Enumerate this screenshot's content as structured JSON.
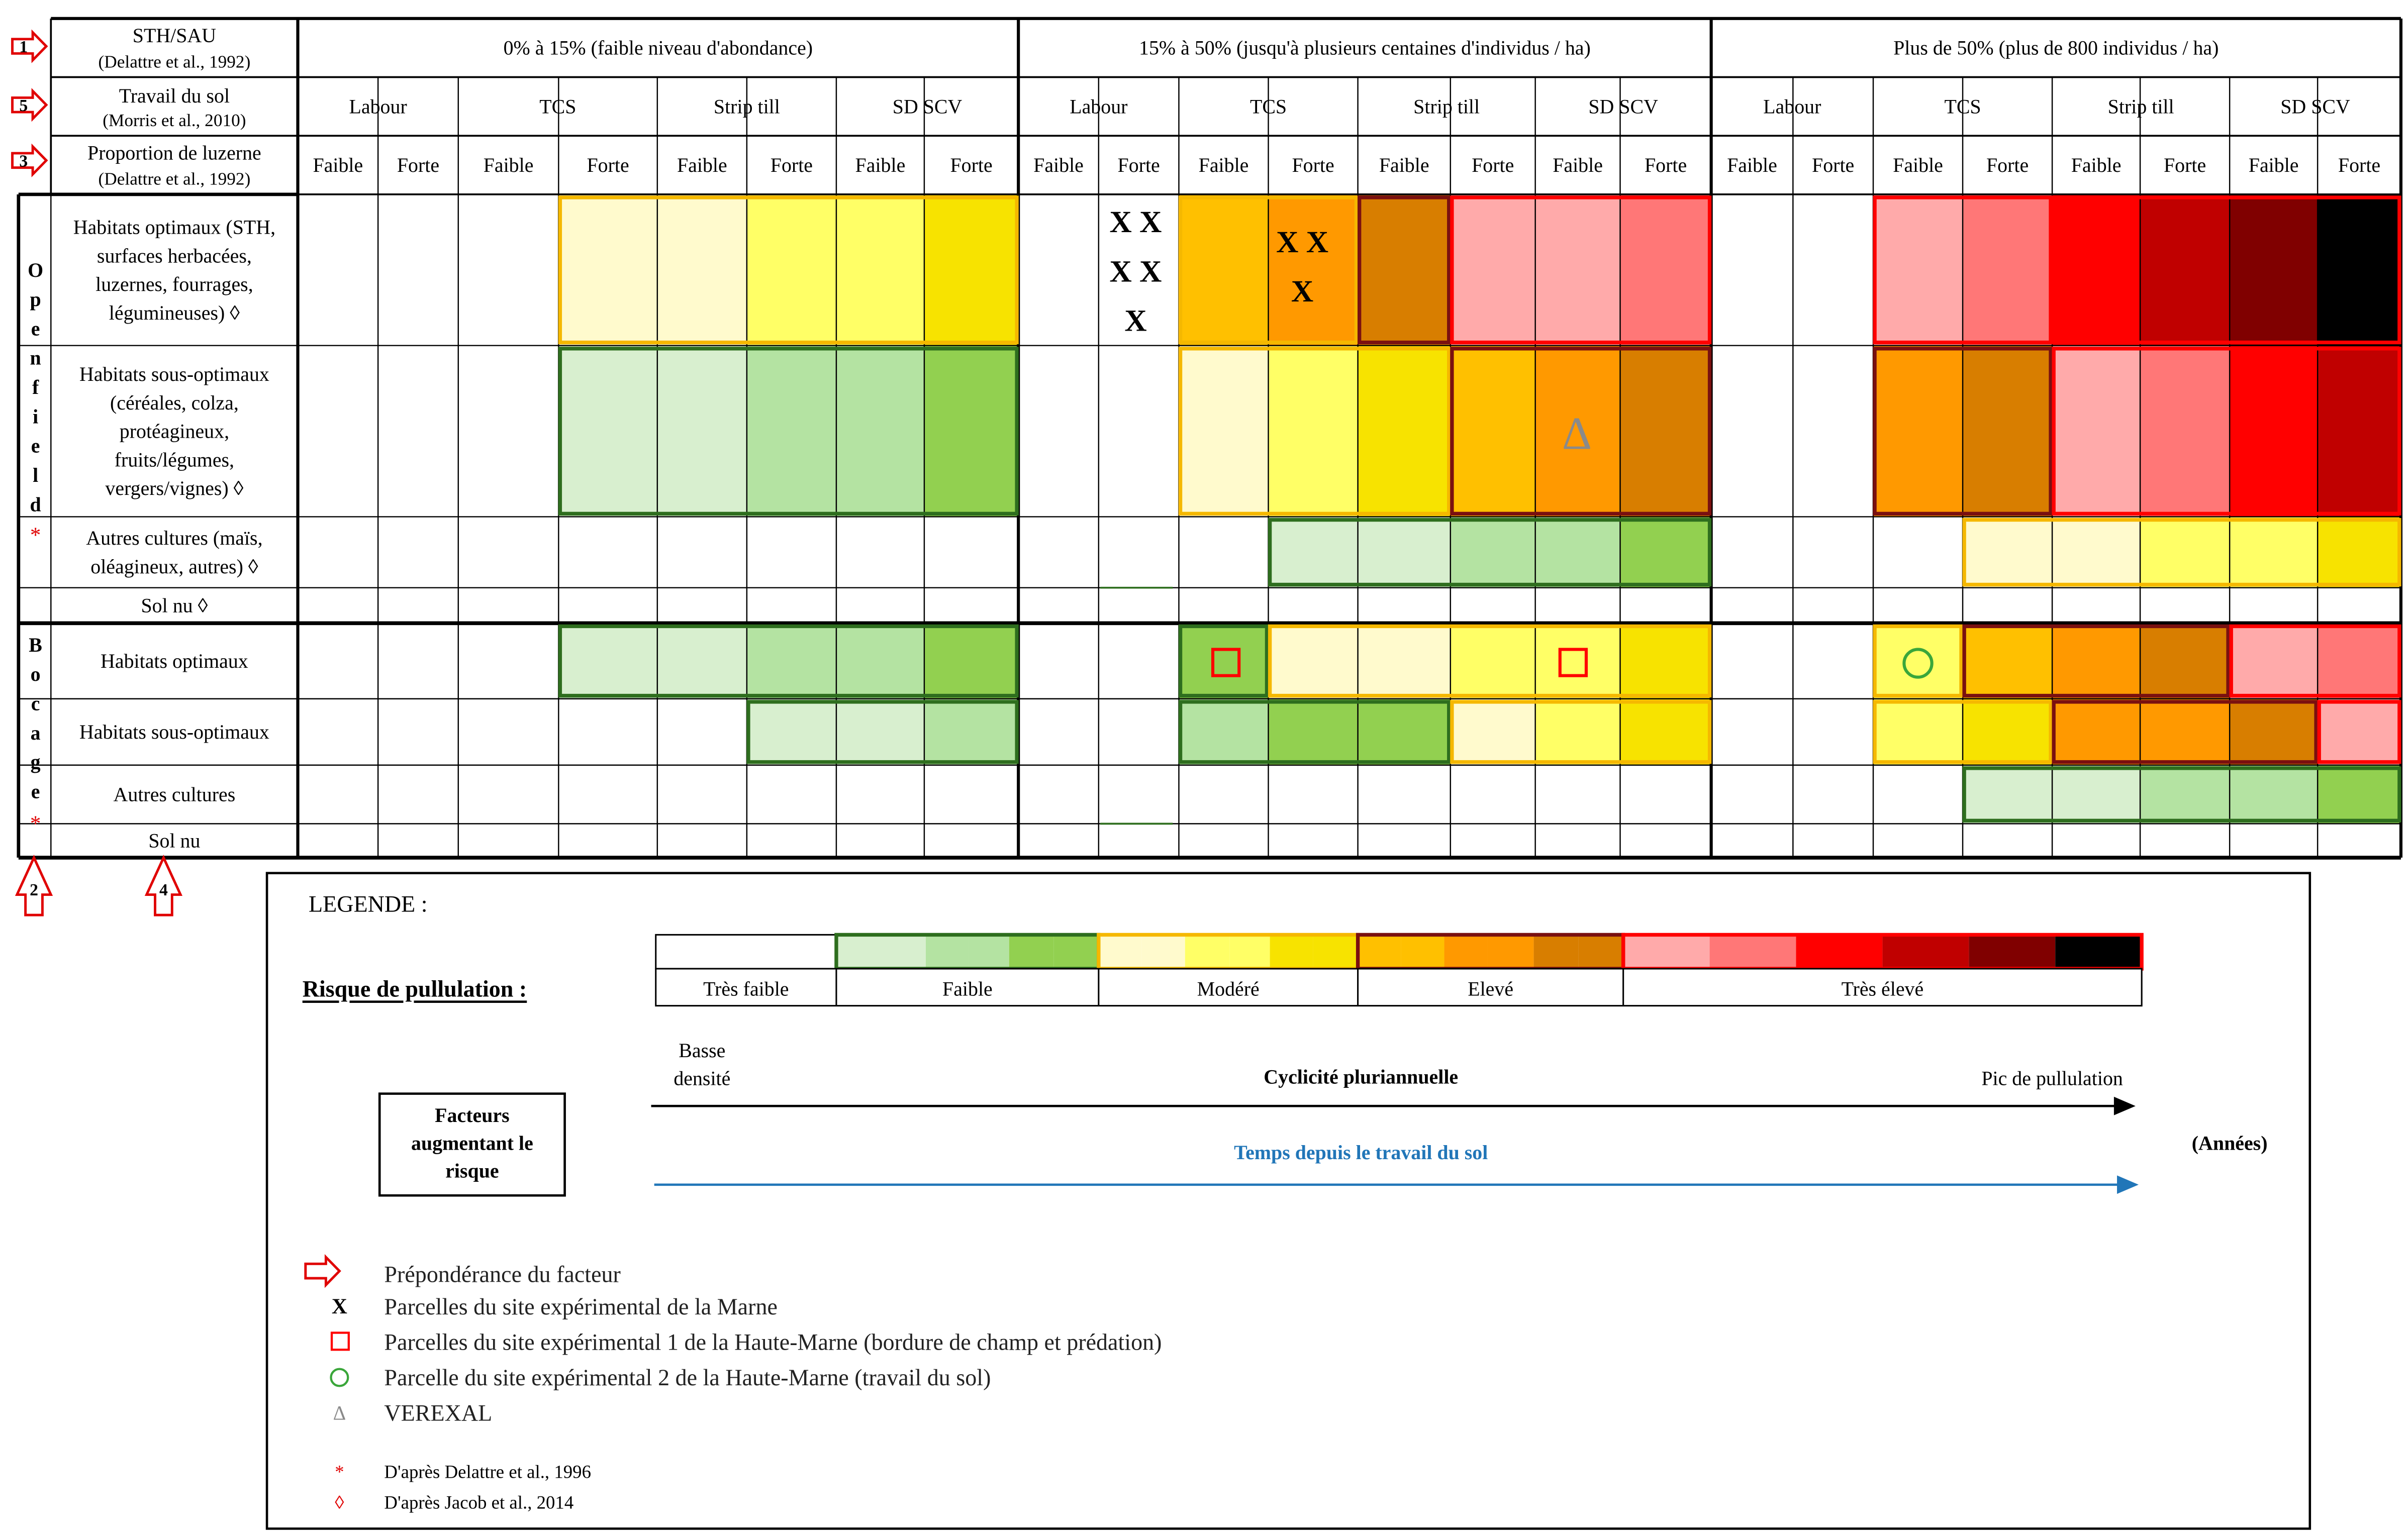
{
  "header": {
    "row1": {
      "label": "STH/SAU",
      "ref": "(Delattre et al., 1992)",
      "bands": [
        "0% à 15% (faible niveau d'abondance)",
        "15% à 50% (jusqu'à plusieurs centaines d'individus / ha)",
        "Plus de 50% (plus de 800 individus / ha)"
      ]
    },
    "row2": {
      "label": "Travail du sol",
      "ref": "(Morris et al., 2010)",
      "tillage": [
        "Labour",
        "TCS",
        "Strip till",
        "SD SCV"
      ]
    },
    "row3": {
      "label": "Proportion de luzerne",
      "ref": "(Delattre et al., 1992)",
      "levels": [
        "Faible",
        "Forte"
      ]
    }
  },
  "factor_numbers": [
    "1",
    "5",
    "3",
    "2",
    "4"
  ],
  "sections": [
    {
      "name_letters": [
        "O",
        "p",
        "e",
        "n",
        "f",
        "i",
        "e",
        "l",
        "d"
      ],
      "name_mark": "*",
      "rows": [
        {
          "lines": [
            "Habitats optimaux (STH,",
            "surfaces herbacées,",
            "luzernes, fourrages,",
            "légumineuses) ◊"
          ]
        },
        {
          "lines": [
            "Habitats sous-optimaux",
            "(céréales, colza,",
            "protéagineux,",
            "fruits/légumes,",
            "vergers/vignes) ◊"
          ]
        },
        {
          "lines": [
            "Autres cultures (maïs,",
            "oléagineux, autres) ◊"
          ]
        },
        {
          "lines": [
            "Sol nu ◊"
          ]
        }
      ]
    },
    {
      "name_letters": [
        "B",
        "o",
        "c",
        "a",
        "g",
        "e"
      ],
      "name_mark": "*",
      "rows": [
        {
          "lines": [
            "Habitats optimaux"
          ]
        },
        {
          "lines": [
            "Habitats sous-optimaux"
          ]
        },
        {
          "lines": [
            "Autres cultures"
          ]
        },
        {
          "lines": [
            "Sol nu"
          ]
        }
      ]
    }
  ],
  "palette": {
    "G1": "#d8efcf",
    "G2": "#b4e3a2",
    "G3": "#92d050",
    "Y1": "#fffacd",
    "Y2": "#ffff66",
    "Y3": "#f7e300",
    "O1": "#ffc000",
    "O2": "#ff9900",
    "O3": "#d87e00",
    "R1": "#ffaaaa",
    "R2": "#ff7777",
    "R3": "#ff0000",
    "R4": "#c00000",
    "R5": "#800000",
    "R6": "#000000",
    "green_border": "#2e6e1e",
    "yellow_border": "#f5b800",
    "orange_border": "#7a1010",
    "red_border": "#ff0000",
    "arrow_red": "#e00000",
    "time_arrow": "#2176b8"
  },
  "cells": [
    [
      "",
      "",
      "",
      "Y1",
      "Y1",
      "Y2",
      "Y2",
      "Y3",
      "",
      "",
      "O1",
      "O2",
      "O3",
      "R1",
      "R1",
      "R2",
      "",
      "",
      "R1",
      "R2",
      "R3",
      "R4",
      "R5",
      "R6"
    ],
    [
      "",
      "",
      "",
      "G1",
      "G1",
      "G2",
      "G2",
      "G3",
      "",
      "",
      "Y1",
      "Y2",
      "Y3",
      "O1",
      "O2",
      "O3",
      "",
      "",
      "O2",
      "O3",
      "R1",
      "R2",
      "R3",
      "R4"
    ],
    [
      "",
      "",
      "",
      "",
      "",
      "",
      "",
      "",
      "",
      "",
      "",
      "G1",
      "G1",
      "G2",
      "G2",
      "G3",
      "",
      "",
      "",
      "Y1",
      "Y1",
      "Y2",
      "Y2",
      "Y3"
    ],
    [
      "",
      "",
      "",
      "",
      "",
      "",
      "",
      "",
      "",
      "",
      "",
      "",
      "",
      "",
      "",
      "",
      "",
      "",
      "",
      "",
      "",
      "",
      "",
      ""
    ],
    [
      "",
      "",
      "",
      "G1",
      "G1",
      "G2",
      "G2",
      "G3",
      "",
      "",
      "G3",
      "Y1",
      "Y1",
      "Y2",
      "Y2",
      "Y3",
      "",
      "",
      "Y2",
      "O1",
      "O2",
      "O3",
      "R1",
      "R2"
    ],
    [
      "",
      "",
      "",
      "",
      "",
      "G1",
      "G1",
      "G2",
      "",
      "",
      "G2",
      "G3",
      "G3",
      "Y1",
      "Y2",
      "Y3",
      "",
      "",
      "Y2",
      "Y3",
      "O2",
      "O2",
      "O3",
      "R1"
    ],
    [
      "",
      "",
      "",
      "",
      "",
      "",
      "",
      "",
      "",
      "",
      "",
      "",
      "",
      "",
      "",
      "",
      "",
      "",
      "",
      "G1",
      "G1",
      "G2",
      "G2",
      "G3"
    ],
    [
      "",
      "",
      "",
      "",
      "",
      "",
      "",
      "",
      "",
      "",
      "",
      "",
      "",
      "",
      "",
      "",
      "",
      "",
      "",
      "",
      "",
      "",
      "",
      ""
    ]
  ],
  "markers": {
    "x": "X",
    "x_cells": [
      {
        "lines": [
          "X X",
          "X X",
          "X"
        ]
      },
      {
        "lines": [
          "X X",
          "X"
        ]
      }
    ],
    "triangle": "Δ"
  },
  "legend": {
    "title": "LEGENDE :",
    "risk_label": "Risque de pullulation :",
    "risk_levels": [
      "Très faible",
      "Faible",
      "Modéré",
      "Elevé",
      "Très élevé"
    ],
    "factors_box": [
      "Facteurs",
      "augmentant le",
      "risque"
    ],
    "low_density": [
      "Basse",
      "densité"
    ],
    "cyclicity": "Cyclicité pluriannuelle",
    "peak": "Pic de pullulation",
    "time_since": "Temps depuis le travail du sol",
    "years": "(Années)",
    "items": [
      "Prépondérance du facteur",
      "Parcelles du site expérimental de la Marne",
      "Parcelles du site expérimental 1 de la Haute-Marne (bordure de champ et prédation)",
      "Parcelle du site expérimental 2 de la Haute-Marne (travail du sol)",
      "VEREXAL"
    ],
    "item_x_symbol": "X",
    "item_triangle_symbol": "Δ",
    "sources": [
      {
        "symbol": "*",
        "text": "D'après Delattre et al., 1996"
      },
      {
        "symbol": "◊",
        "text": "D'après Jacob et al., 2014"
      }
    ]
  }
}
